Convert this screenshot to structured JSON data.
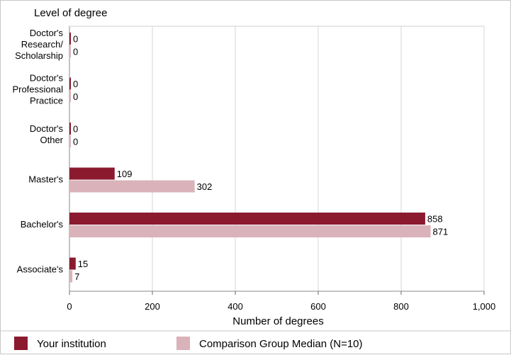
{
  "chart_data": {
    "type": "bar",
    "orientation": "horizontal",
    "title": "Level of degree",
    "xlabel": "Number of degrees",
    "ylabel": "",
    "xlim": [
      0,
      1000
    ],
    "xticks": [
      "0",
      "200",
      "400",
      "600",
      "800",
      "1,000"
    ],
    "xtick_values": [
      0,
      200,
      400,
      600,
      800,
      1000
    ],
    "grid": true,
    "legend_position": "bottom",
    "categories": [
      [
        "Doctor's",
        "Research/",
        "Scholarship"
      ],
      [
        "Doctor's",
        "Professional",
        "Practice"
      ],
      [
        "Doctor's",
        "Other"
      ],
      [
        "Master's"
      ],
      [
        "Bachelor's"
      ],
      [
        "Associate's"
      ]
    ],
    "series": [
      {
        "name": "Your institution",
        "color": "#8b1a2f",
        "values": [
          0,
          0,
          0,
          109,
          858,
          15
        ],
        "labels": [
          "0",
          "0",
          "0",
          "109",
          "858",
          "15"
        ]
      },
      {
        "name": "Comparison Group Median (N=10)",
        "color": "#d9b3b9",
        "values": [
          0,
          0,
          0,
          302,
          871,
          7
        ],
        "labels": [
          "0",
          "0",
          "0",
          "302",
          "871",
          "7"
        ]
      }
    ]
  }
}
